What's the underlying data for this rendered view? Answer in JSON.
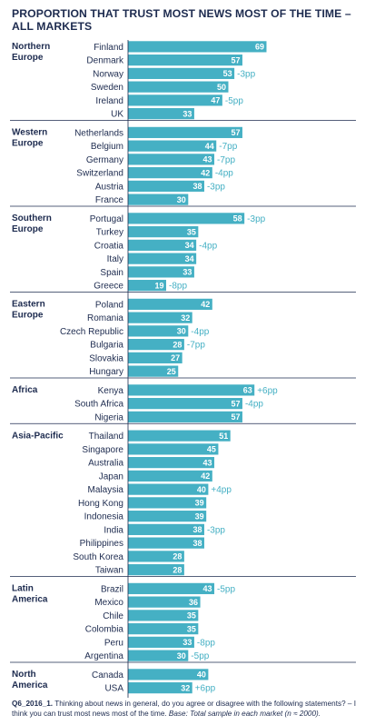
{
  "title": "PROPORTION THAT TRUST MOST NEWS MOST OF THE TIME – ALL MARKETS",
  "footnote": {
    "code": "Q6_2016_1.",
    "question": " Thinking about news in general, do you agree or disagree with the following statements? – I think you can trust most news most of the time. ",
    "base": "Base: Total sample in each market (n ≈ 2000)."
  },
  "colors": {
    "bar": "#45b0c4",
    "text": "#1d2b4f",
    "divider": "#1d2b4f",
    "change": "#45b0c4"
  },
  "chart_data": {
    "type": "bar",
    "orientation": "horizontal",
    "title": "PROPORTION THAT TRUST MOST NEWS MOST OF THE TIME – ALL MARKETS",
    "xlim": [
      0,
      100
    ],
    "x_ticks": [
      "0%",
      "25%",
      "50%",
      "75%",
      "100%"
    ],
    "grid": false,
    "groups": [
      {
        "region": "Northern Europe",
        "items": [
          {
            "country": "Finland",
            "value": 69,
            "change": ""
          },
          {
            "country": "Denmark",
            "value": 57,
            "change": ""
          },
          {
            "country": "Norway",
            "value": 53,
            "change": "-3pp"
          },
          {
            "country": "Sweden",
            "value": 50,
            "change": ""
          },
          {
            "country": "Ireland",
            "value": 47,
            "change": "-5pp"
          },
          {
            "country": "UK",
            "value": 33,
            "change": ""
          }
        ]
      },
      {
        "region": "Western Europe",
        "items": [
          {
            "country": "Netherlands",
            "value": 57,
            "change": ""
          },
          {
            "country": "Belgium",
            "value": 44,
            "change": "-7pp"
          },
          {
            "country": "Germany",
            "value": 43,
            "change": "-7pp"
          },
          {
            "country": "Switzerland",
            "value": 42,
            "change": "-4pp"
          },
          {
            "country": "Austria",
            "value": 38,
            "change": "-3pp"
          },
          {
            "country": "France",
            "value": 30,
            "change": ""
          }
        ]
      },
      {
        "region": "Southern Europe",
        "items": [
          {
            "country": "Portugal",
            "value": 58,
            "change": "-3pp"
          },
          {
            "country": "Turkey",
            "value": 35,
            "change": ""
          },
          {
            "country": "Croatia",
            "value": 34,
            "change": "-4pp"
          },
          {
            "country": "Italy",
            "value": 34,
            "change": ""
          },
          {
            "country": "Spain",
            "value": 33,
            "change": ""
          },
          {
            "country": "Greece",
            "value": 19,
            "change": "-8pp"
          }
        ]
      },
      {
        "region": "Eastern Europe",
        "items": [
          {
            "country": "Poland",
            "value": 42,
            "change": ""
          },
          {
            "country": "Romania",
            "value": 32,
            "change": ""
          },
          {
            "country": "Czech Republic",
            "value": 30,
            "change": "-4pp"
          },
          {
            "country": "Bulgaria",
            "value": 28,
            "change": "-7pp"
          },
          {
            "country": "Slovakia",
            "value": 27,
            "change": ""
          },
          {
            "country": "Hungary",
            "value": 25,
            "change": ""
          }
        ]
      },
      {
        "region": "Africa",
        "items": [
          {
            "country": "Kenya",
            "value": 63,
            "change": "+6pp"
          },
          {
            "country": "South Africa",
            "value": 57,
            "change": "-4pp"
          },
          {
            "country": "Nigeria",
            "value": 57,
            "change": ""
          }
        ]
      },
      {
        "region": "Asia-Pacific",
        "items": [
          {
            "country": "Thailand",
            "value": 51,
            "change": ""
          },
          {
            "country": "Singapore",
            "value": 45,
            "change": ""
          },
          {
            "country": "Australia",
            "value": 43,
            "change": ""
          },
          {
            "country": "Japan",
            "value": 42,
            "change": ""
          },
          {
            "country": "Malaysia",
            "value": 40,
            "change": "+4pp"
          },
          {
            "country": "Hong Kong",
            "value": 39,
            "change": ""
          },
          {
            "country": "Indonesia",
            "value": 39,
            "change": ""
          },
          {
            "country": "India",
            "value": 38,
            "change": "-3pp"
          },
          {
            "country": "Philippines",
            "value": 38,
            "change": ""
          },
          {
            "country": "South Korea",
            "value": 28,
            "change": ""
          },
          {
            "country": "Taiwan",
            "value": 28,
            "change": ""
          }
        ]
      },
      {
        "region": "Latin America",
        "items": [
          {
            "country": "Brazil",
            "value": 43,
            "change": "-5pp"
          },
          {
            "country": "Mexico",
            "value": 36,
            "change": ""
          },
          {
            "country": "Chile",
            "value": 35,
            "change": ""
          },
          {
            "country": "Colombia",
            "value": 35,
            "change": ""
          },
          {
            "country": "Peru",
            "value": 33,
            "change": "-8pp"
          },
          {
            "country": "Argentina",
            "value": 30,
            "change": "-5pp"
          }
        ]
      },
      {
        "region": "North America",
        "items": [
          {
            "country": "Canada",
            "value": 40,
            "change": ""
          },
          {
            "country": "USA",
            "value": 32,
            "change": "+6pp"
          }
        ]
      }
    ]
  }
}
